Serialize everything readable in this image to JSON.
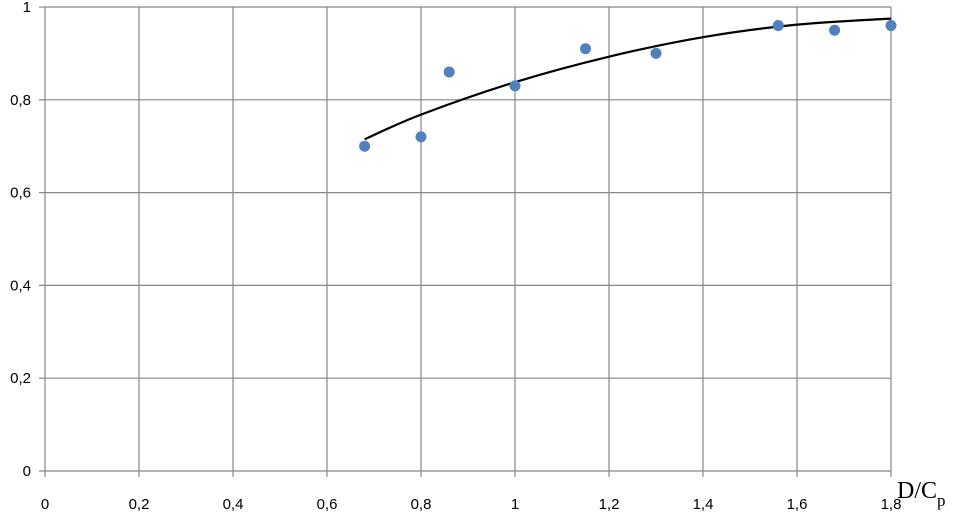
{
  "chart_data": {
    "type": "scatter",
    "title": "",
    "xlabel": "D/C",
    "xlabel_subscript": "p",
    "ylabel": "",
    "xlim": [
      0,
      1.8
    ],
    "ylim": [
      0,
      1
    ],
    "xticks": [
      "0",
      "0,2",
      "0,4",
      "0,6",
      "0,8",
      "1",
      "1,2",
      "1,4",
      "1,6",
      "1,8"
    ],
    "xtick_values": [
      0,
      0.2,
      0.4,
      0.6,
      0.8,
      1.0,
      1.2,
      1.4,
      1.6,
      1.8
    ],
    "yticks": [
      "0",
      "0,2",
      "0,4",
      "0,6",
      "0,8",
      "1"
    ],
    "ytick_values": [
      0,
      0.2,
      0.4,
      0.6,
      0.8,
      1.0
    ],
    "grid": true,
    "legend": "none",
    "series": [
      {
        "kind": "points",
        "color": "#4f81bd",
        "x": [
          0.68,
          0.8,
          0.86,
          1.0,
          1.15,
          1.3,
          1.56,
          1.68,
          1.8
        ],
        "y": [
          0.7,
          0.72,
          0.86,
          0.83,
          0.91,
          0.9,
          0.96,
          0.95,
          0.96
        ]
      },
      {
        "kind": "trendline",
        "color": "#000000",
        "x": [
          0.68,
          0.8,
          1.0,
          1.2,
          1.4,
          1.6,
          1.8
        ],
        "y": [
          0.715,
          0.768,
          0.838,
          0.893,
          0.935,
          0.962,
          0.975
        ]
      }
    ]
  }
}
